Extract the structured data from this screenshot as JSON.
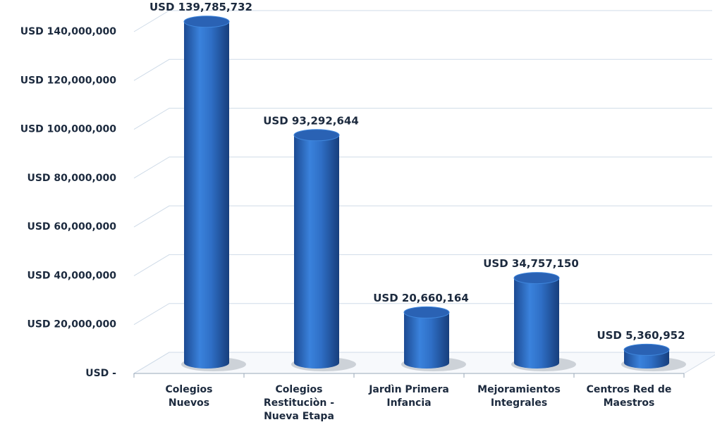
{
  "chart_data": {
    "type": "bar3d",
    "categories": [
      "Colegios Nuevos",
      "Colegios Restituciòn - Nueva Etapa",
      "Jardìn Primera Infancia",
      "Mejoramientos Integrales",
      "Centros Red de Maestros"
    ],
    "values": [
      139785732,
      93292644,
      20660164,
      34757150,
      5360952
    ],
    "value_labels": [
      "USD 139,785,732",
      "USD 93,292,644",
      "USD 20,660,164",
      "USD 34,757,150",
      "USD 5,360,952"
    ],
    "color": "#2e6cc4",
    "ylim": [
      0,
      140000000
    ],
    "yticks": [
      {
        "value": 0,
        "label": "USD -"
      },
      {
        "value": 20000000,
        "label": "USD 20,000,000"
      },
      {
        "value": 40000000,
        "label": "USD 40,000,000"
      },
      {
        "value": 60000000,
        "label": "USD 60,000,000"
      },
      {
        "value": 80000000,
        "label": "USD 80,000,000"
      },
      {
        "value": 100000000,
        "label": "USD 100,000,000"
      },
      {
        "value": 120000000,
        "label": "USD 120,000,000"
      },
      {
        "value": 140000000,
        "label": "USD 140,000,000"
      }
    ],
    "grid": true
  }
}
